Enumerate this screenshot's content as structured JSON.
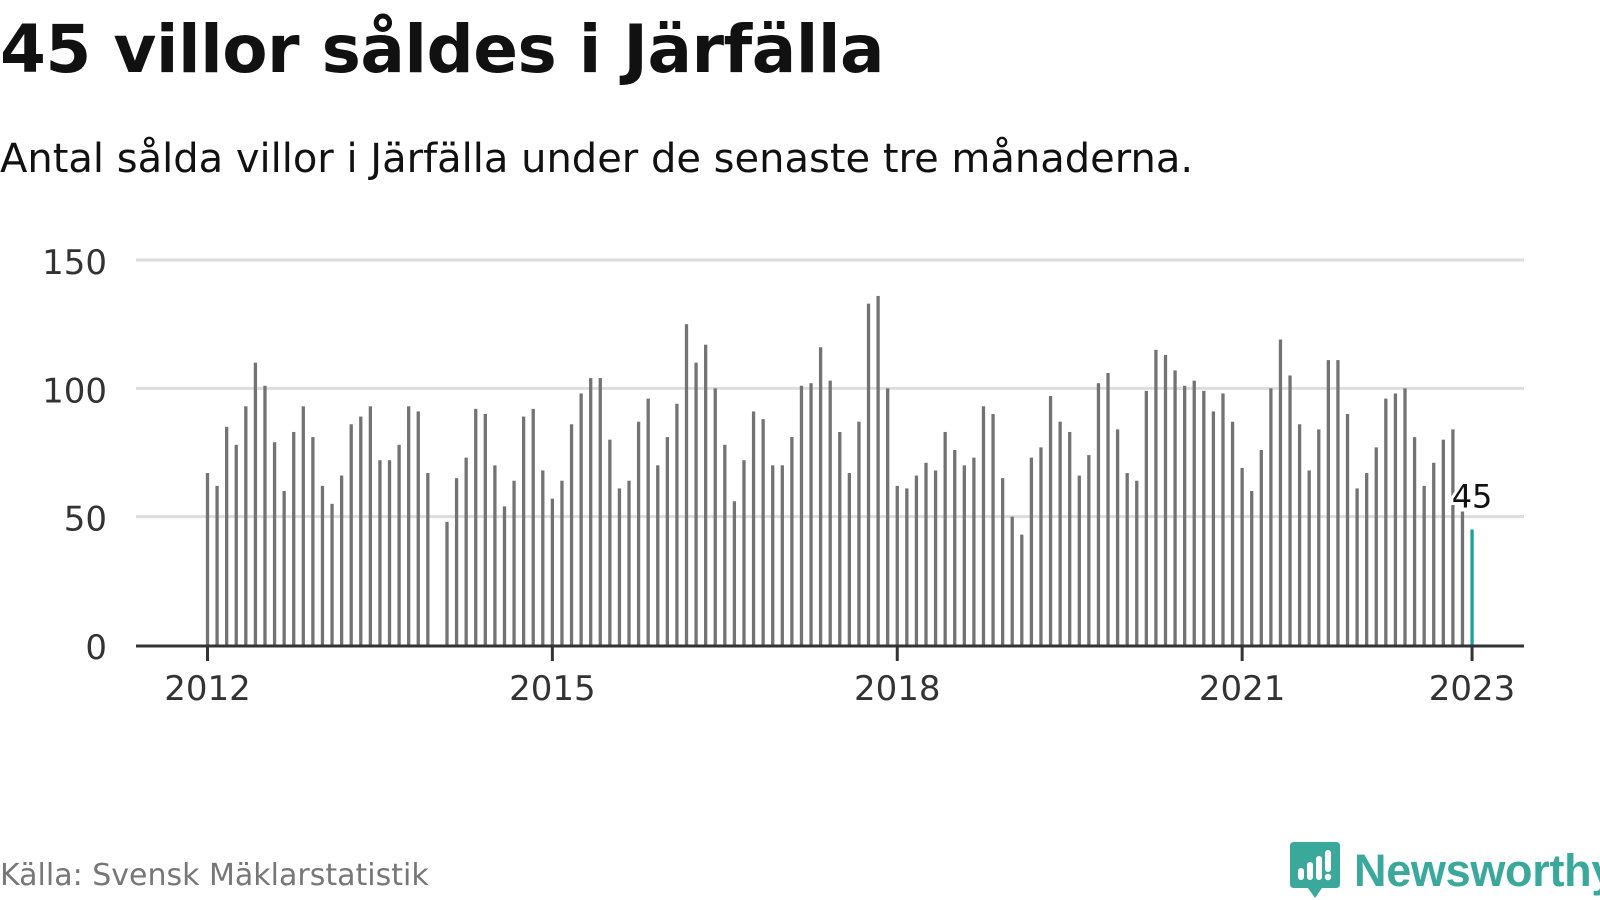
{
  "title": "45 villor såldes i Järfälla",
  "subtitle": "Antal sålda villor i Järfälla under de senaste tre månaderna.",
  "source": "Källa: Svensk Mäklarstatistik",
  "brand": "Newsworthy",
  "colors": {
    "bar": "#737373",
    "highlight": "#1aa39a",
    "grid": "#dddddd",
    "axis": "#333333",
    "brand": "#3aa89a"
  },
  "chart_data": {
    "type": "bar",
    "title": "45 villor såldes i Järfälla",
    "subtitle": "Antal sålda villor i Järfälla under de senaste tre månaderna.",
    "xlabel": "",
    "ylabel": "",
    "ylim": [
      0,
      150
    ],
    "yticks": [
      0,
      50,
      100,
      150
    ],
    "xticks": [
      "2012",
      "2015",
      "2018",
      "2021",
      "2023"
    ],
    "x_start": "2012-01",
    "frequency": "monthly",
    "grid": true,
    "highlight_label": "45",
    "values": [
      67,
      62,
      85,
      78,
      93,
      110,
      101,
      79,
      60,
      83,
      93,
      81,
      62,
      55,
      66,
      86,
      89,
      93,
      72,
      72,
      78,
      93,
      91,
      67,
      null,
      48,
      65,
      73,
      92,
      90,
      70,
      54,
      64,
      89,
      92,
      68,
      57,
      64,
      86,
      98,
      104,
      104,
      80,
      61,
      64,
      87,
      96,
      70,
      81,
      94,
      125,
      110,
      117,
      100,
      78,
      56,
      72,
      91,
      88,
      70,
      70,
      81,
      101,
      102,
      116,
      103,
      83,
      67,
      87,
      133,
      136,
      100,
      62,
      61,
      66,
      71,
      68,
      83,
      76,
      70,
      73,
      93,
      90,
      65,
      50,
      43,
      73,
      77,
      97,
      87,
      83,
      66,
      74,
      102,
      106,
      84,
      67,
      64,
      99,
      115,
      113,
      107,
      101,
      103,
      99,
      91,
      98,
      87,
      69,
      60,
      76,
      100,
      119,
      105,
      86,
      68,
      84,
      111,
      111,
      90,
      61,
      67,
      77,
      96,
      98,
      100,
      81,
      62,
      71,
      80,
      84,
      52,
      45
    ]
  }
}
